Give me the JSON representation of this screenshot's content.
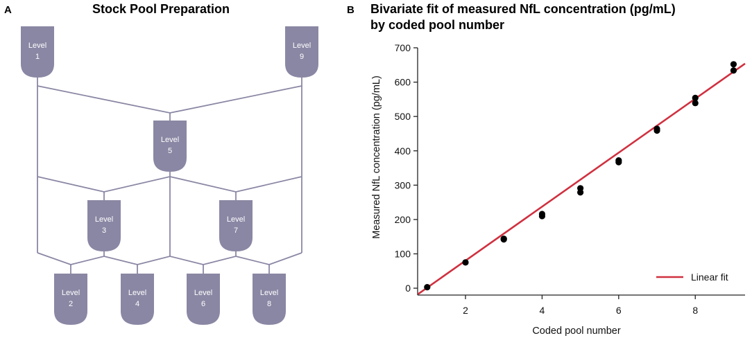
{
  "panel_a": {
    "letter": "A",
    "title": "Stock Pool Preparation",
    "vessel_word": "Level",
    "vessels": [
      {
        "id": "1",
        "label": "Level",
        "number": "1"
      },
      {
        "id": "9",
        "label": "Level",
        "number": "9"
      },
      {
        "id": "5",
        "label": "Level",
        "number": "5"
      },
      {
        "id": "3",
        "label": "Level",
        "number": "3"
      },
      {
        "id": "7",
        "label": "Level",
        "number": "7"
      },
      {
        "id": "2",
        "label": "Level",
        "number": "2"
      },
      {
        "id": "4",
        "label": "Level",
        "number": "4"
      },
      {
        "id": "6",
        "label": "Level",
        "number": "6"
      },
      {
        "id": "8",
        "label": "Level",
        "number": "8"
      }
    ],
    "colors": {
      "vessel": "#8a87a4",
      "vessel_text": "#ffffff"
    }
  },
  "panel_b": {
    "letter": "B"
  },
  "chart_data": {
    "type": "scatter",
    "title_line1": "Bivariate fit of measured NfL concentration (pg/mL)",
    "title_line2": "by coded pool number",
    "xlabel": "Coded pool number",
    "ylabel": "Measured NfL concentration (pg/mL)",
    "xlim": [
      0.75,
      9.3
    ],
    "ylim": [
      -20,
      700
    ],
    "xticks": [
      2,
      4,
      6,
      8
    ],
    "yticks": [
      0,
      100,
      200,
      300,
      400,
      500,
      600,
      700
    ],
    "points": [
      {
        "x": 1,
        "y": 3
      },
      {
        "x": 2,
        "y": 75
      },
      {
        "x": 3,
        "y": 142
      },
      {
        "x": 3,
        "y": 144
      },
      {
        "x": 4,
        "y": 210
      },
      {
        "x": 4,
        "y": 216
      },
      {
        "x": 5,
        "y": 279
      },
      {
        "x": 5,
        "y": 291
      },
      {
        "x": 6,
        "y": 367
      },
      {
        "x": 6,
        "y": 372
      },
      {
        "x": 7,
        "y": 459
      },
      {
        "x": 7,
        "y": 464
      },
      {
        "x": 8,
        "y": 539
      },
      {
        "x": 8,
        "y": 554
      },
      {
        "x": 9,
        "y": 634
      },
      {
        "x": 9,
        "y": 652
      }
    ],
    "fit": {
      "slope": 78.6,
      "intercept": -77,
      "x_start": 0.76,
      "x_end": 9.3
    },
    "legend": {
      "label": "Linear fit",
      "position": "bottom-right"
    },
    "colors": {
      "fit": "#d0303f",
      "points": "#000000"
    }
  }
}
